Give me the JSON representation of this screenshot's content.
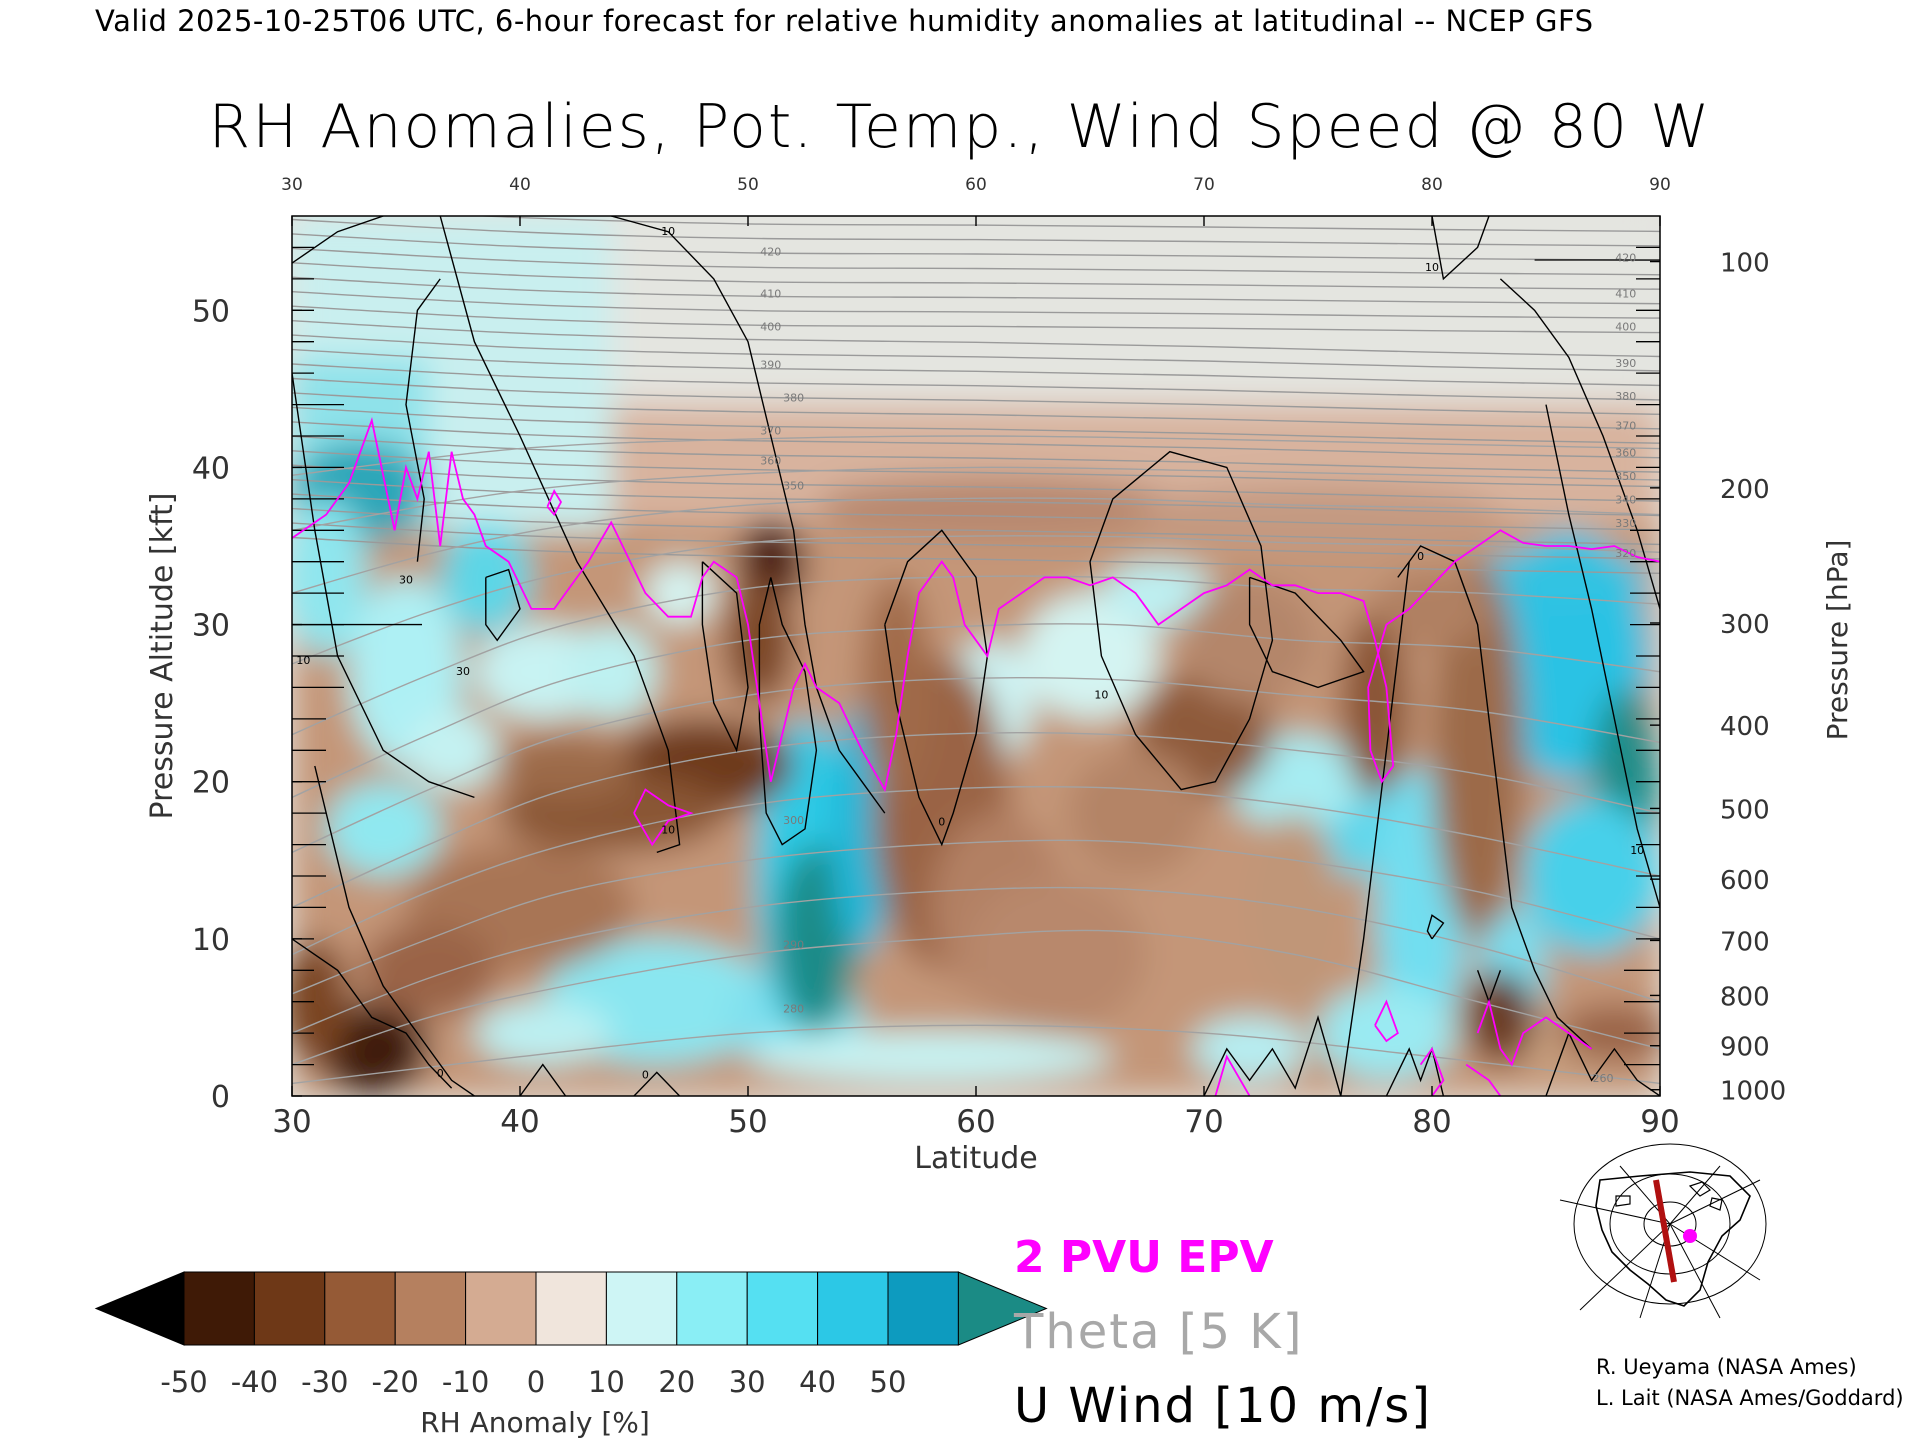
{
  "header": "Valid 2025-10-25T06 UTC, 6-hour forecast for relative humidity anomalies at latitudinal -- NCEP GFS",
  "title": "RH Anomalies, Pot. Temp., Wind Speed @ 80 W",
  "chart_data": {
    "type": "heatmap",
    "xlabel": "Latitude",
    "ylabel": "Pressure Altitude [kft]",
    "ylabel_right": "Pressure [hPa]",
    "xlim": [
      30,
      90
    ],
    "ylim": [
      0,
      56
    ],
    "x_ticks": [
      30,
      40,
      50,
      60,
      70,
      80,
      90
    ],
    "y_ticks": [
      0,
      10,
      20,
      30,
      40,
      50
    ],
    "pressure_ticks": [
      {
        "label": "100",
        "kft": 53.1
      },
      {
        "label": "200",
        "kft": 38.7
      },
      {
        "label": "300",
        "kft": 30.1
      },
      {
        "label": "400",
        "kft": 23.6
      },
      {
        "label": "500",
        "kft": 18.3
      },
      {
        "label": "600",
        "kft": 13.8
      },
      {
        "label": "700",
        "kft": 9.9
      },
      {
        "label": "800",
        "kft": 6.4
      },
      {
        "label": "900",
        "kft": 3.2
      },
      {
        "label": "1000",
        "kft": 0.4
      }
    ],
    "theta_labels": [
      {
        "text": "420",
        "lat": 51,
        "kft": 53.5
      },
      {
        "text": "410",
        "lat": 51,
        "kft": 50.8
      },
      {
        "text": "400",
        "lat": 51,
        "kft": 48.7
      },
      {
        "text": "390",
        "lat": 51,
        "kft": 46.3
      },
      {
        "text": "380",
        "lat": 52,
        "kft": 44.2
      },
      {
        "text": "370",
        "lat": 51,
        "kft": 42.1
      },
      {
        "text": "360",
        "lat": 51,
        "kft": 40.2
      },
      {
        "text": "350",
        "lat": 52,
        "kft": 38.6
      },
      {
        "text": "300",
        "lat": 52,
        "kft": 17.3
      },
      {
        "text": "290",
        "lat": 52,
        "kft": 9.4
      },
      {
        "text": "280",
        "lat": 52,
        "kft": 5.3
      },
      {
        "text": "420",
        "lat": 88.5,
        "kft": 53.1
      },
      {
        "text": "410",
        "lat": 88.5,
        "kft": 50.8
      },
      {
        "text": "400",
        "lat": 88.5,
        "kft": 48.7
      },
      {
        "text": "390",
        "lat": 88.5,
        "kft": 46.4
      },
      {
        "text": "380",
        "lat": 88.5,
        "kft": 44.3
      },
      {
        "text": "370",
        "lat": 88.5,
        "kft": 42.4
      },
      {
        "text": "360",
        "lat": 88.5,
        "kft": 40.7
      },
      {
        "text": "350",
        "lat": 88.5,
        "kft": 39.2
      },
      {
        "text": "340",
        "lat": 88.5,
        "kft": 37.7
      },
      {
        "text": "330",
        "lat": 88.5,
        "kft": 36.2
      },
      {
        "text": "320",
        "lat": 88.5,
        "kft": 34.3
      },
      {
        "text": "260",
        "lat": 87.5,
        "kft": 0.9
      }
    ],
    "wind_labels": [
      {
        "text": "10",
        "lat": 46.5,
        "kft": 54.8
      },
      {
        "text": "10",
        "lat": 80,
        "kft": 52.5
      },
      {
        "text": "30",
        "lat": 35,
        "kft": 32.6
      },
      {
        "text": "30",
        "lat": 37.5,
        "kft": 26.8
      },
      {
        "text": "10",
        "lat": 30.5,
        "kft": 27.5
      },
      {
        "text": "10",
        "lat": 46.5,
        "kft": 16.7
      },
      {
        "text": "10",
        "lat": 65.5,
        "kft": 25.3
      },
      {
        "text": "0",
        "lat": 58.5,
        "kft": 17.2
      },
      {
        "text": "0",
        "lat": 79.5,
        "kft": 34.1
      },
      {
        "text": "0",
        "lat": 36.5,
        "kft": 1.2
      },
      {
        "text": "0",
        "lat": 45.5,
        "kft": 1.1
      },
      {
        "text": "10",
        "lat": 89,
        "kft": 15.4
      }
    ],
    "colorbar": {
      "label": "RH Anomaly [%]",
      "ticks": [
        "-50",
        "-40",
        "-30",
        "-20",
        "-10",
        "0",
        "10",
        "20",
        "30",
        "40",
        "50"
      ],
      "colors": [
        "#000000",
        "#3f1a06",
        "#6e3817",
        "#955a36",
        "#b5805f",
        "#d4ab92",
        "#f0e5dc",
        "#cef5f5",
        "#8aeef5",
        "#55e0f2",
        "#2cc8e6",
        "#0d9bbf",
        "#1b8b85"
      ]
    },
    "legend": [
      {
        "text": "2 PVU EPV",
        "color": "#ff00ff"
      },
      {
        "text": "Theta [5 K]",
        "color": "#a8a8a8"
      },
      {
        "text": "U Wind [10 m/s]",
        "color": "#000000"
      }
    ]
  },
  "credits": [
    "R. Ueyama (NASA Ames)",
    "L. Lait (NASA Ames/Goddard)"
  ]
}
